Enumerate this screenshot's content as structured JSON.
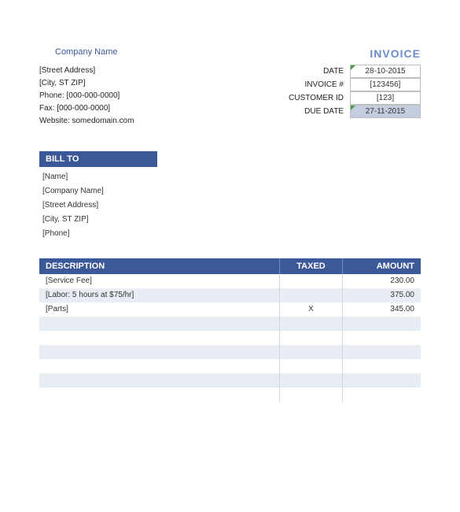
{
  "header": {
    "company_name": "Company Name",
    "invoice_title": "INVOICE"
  },
  "from": {
    "street": "[Street Address]",
    "city": "[City, ST  ZIP]",
    "phone": "Phone: [000-000-0000]",
    "fax": "Fax: [000-000-0000]",
    "website": "Website: somedomain.com"
  },
  "meta": {
    "date_label": "DATE",
    "date_value": "28-10-2015",
    "invoice_no_label": "INVOICE #",
    "invoice_no_value": "[123456]",
    "customer_id_label": "CUSTOMER ID",
    "customer_id_value": "[123]",
    "due_date_label": "DUE DATE",
    "due_date_value": "27-11-2015"
  },
  "billto": {
    "header": "BILL TO",
    "name": "[Name]",
    "company": "[Company Name]",
    "street": "[Street Address]",
    "city": "[City, ST  ZIP]",
    "phone": "[Phone]"
  },
  "table": {
    "col_desc": "DESCRIPTION",
    "col_taxed": "TAXED",
    "col_amount": "AMOUNT",
    "rows": [
      {
        "desc": "[Service Fee]",
        "taxed": "",
        "amount": "230.00"
      },
      {
        "desc": "[Labor: 5 hours at $75/hr]",
        "taxed": "",
        "amount": "375.00"
      },
      {
        "desc": "[Parts]",
        "taxed": "X",
        "amount": "345.00"
      },
      {
        "desc": "",
        "taxed": "",
        "amount": ""
      },
      {
        "desc": "",
        "taxed": "",
        "amount": ""
      },
      {
        "desc": "",
        "taxed": "",
        "amount": ""
      },
      {
        "desc": "",
        "taxed": "",
        "amount": ""
      },
      {
        "desc": "",
        "taxed": "",
        "amount": ""
      },
      {
        "desc": "",
        "taxed": "",
        "amount": ""
      }
    ]
  },
  "colors": {
    "brand": "#3b5998",
    "highlight": "#c5cde0",
    "row_alt": "#e8ecf3",
    "corner": "#4a9c4a"
  }
}
